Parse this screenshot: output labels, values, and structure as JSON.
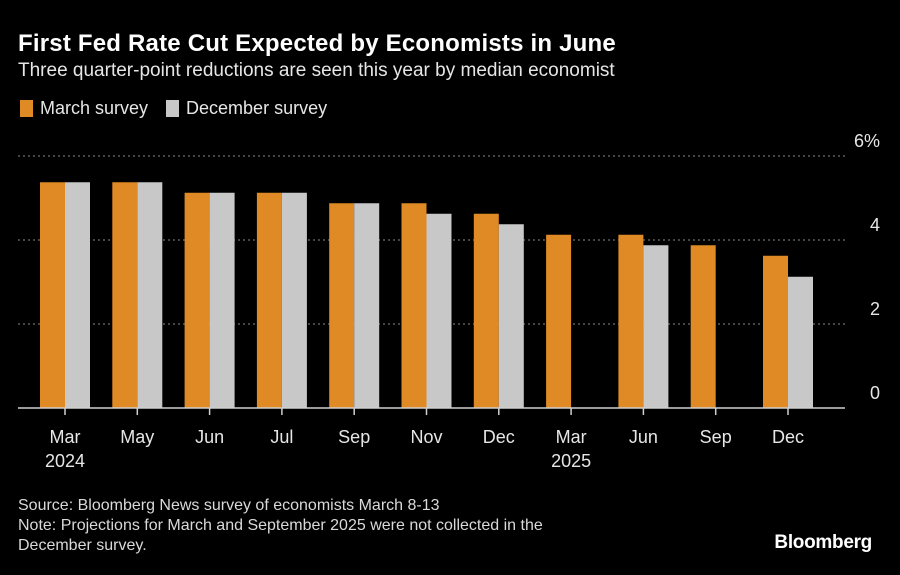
{
  "header": {
    "title": "First Fed Rate Cut Expected by Economists in June",
    "subtitle": "Three quarter-point reductions are seen this year by median economist"
  },
  "colors": {
    "march": "#e08a26",
    "december": "#c8c8c8",
    "grid": "#8a8a8a",
    "axis": "#d0d0d0",
    "text": "#e6e6e6"
  },
  "chart_data": {
    "type": "bar",
    "categories": [
      "Mar 2024",
      "May",
      "Jun",
      "Jul",
      "Sep",
      "Nov",
      "Dec",
      "Mar 2025",
      "Jun",
      "Sep",
      "Dec"
    ],
    "x_tick_lines": [
      [
        "Mar",
        "2024"
      ],
      [
        "May"
      ],
      [
        "Jun"
      ],
      [
        "Jul"
      ],
      [
        "Sep"
      ],
      [
        "Nov"
      ],
      [
        "Dec"
      ],
      [
        "Mar",
        "2025"
      ],
      [
        "Jun"
      ],
      [
        "Sep"
      ],
      [
        "Dec"
      ]
    ],
    "series": [
      {
        "name": "March survey",
        "values": [
          5.375,
          5.375,
          5.125,
          5.125,
          4.875,
          4.875,
          4.625,
          4.125,
          4.125,
          3.875,
          3.625
        ]
      },
      {
        "name": "December survey",
        "values": [
          5.375,
          5.375,
          5.125,
          5.125,
          4.875,
          4.625,
          4.375,
          null,
          3.875,
          null,
          3.125
        ]
      }
    ],
    "y_ticks": [
      {
        "value": 0,
        "label": "0"
      },
      {
        "value": 2,
        "label": "2"
      },
      {
        "value": 4,
        "label": "4"
      },
      {
        "value": 6,
        "label": "6%"
      }
    ],
    "ylim": [
      0,
      6
    ],
    "grid": true,
    "legend": "top-left"
  },
  "footer": {
    "source": "Source: Bloomberg News survey of economists March 8-13",
    "note_line1": "Note: Projections for March and September 2025 were not collected in the",
    "note_line2": "December survey."
  },
  "logo": "Bloomberg"
}
